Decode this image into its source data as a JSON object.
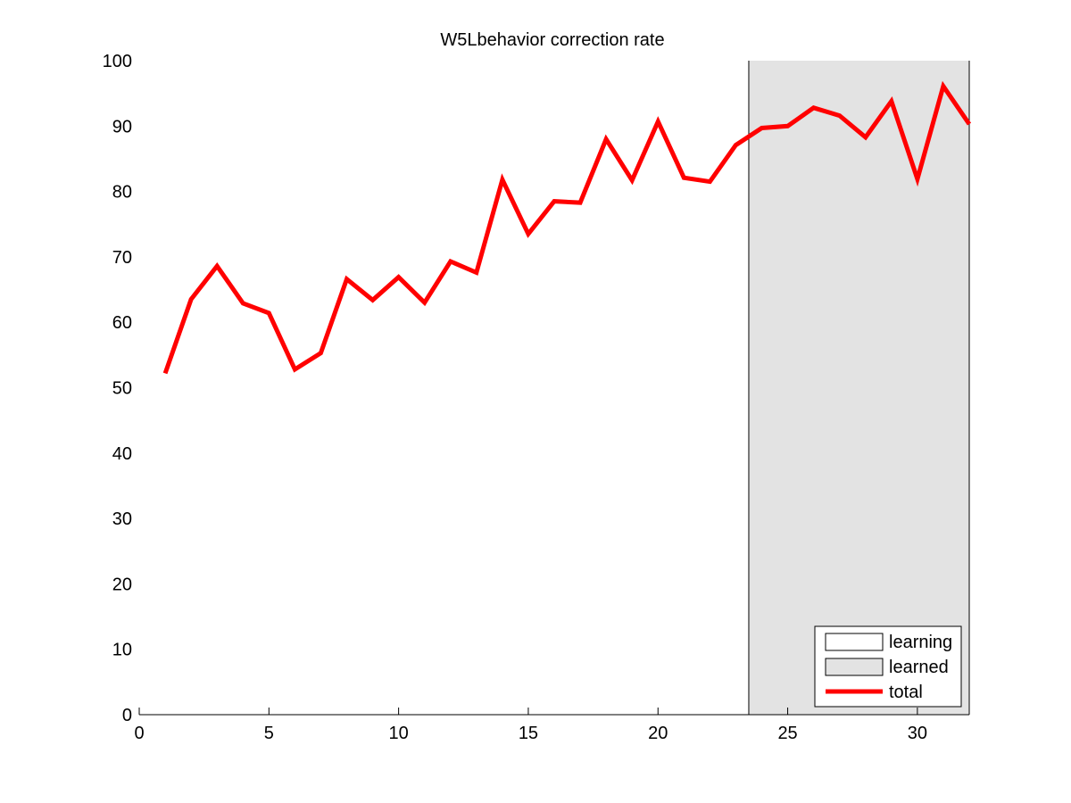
{
  "chart_data": {
    "type": "line",
    "title": "W5Lbehavior correction rate",
    "xlabel": "",
    "ylabel": "",
    "xlim": [
      0,
      32
    ],
    "ylim": [
      0,
      100
    ],
    "xticks": [
      0,
      5,
      10,
      15,
      20,
      25,
      30
    ],
    "yticks": [
      0,
      10,
      20,
      30,
      40,
      50,
      60,
      70,
      80,
      90,
      100
    ],
    "grid": false,
    "legend_position": "bottom-right",
    "regions": [
      {
        "name": "learning",
        "x_start": 0,
        "x_end": 23.5,
        "color": "#ffffff"
      },
      {
        "name": "learned",
        "x_start": 23.5,
        "x_end": 32,
        "color": "#e3e3e3"
      }
    ],
    "series": [
      {
        "name": "total",
        "color": "#ff0000",
        "x": [
          1,
          2,
          3,
          4,
          5,
          6,
          7,
          8,
          9,
          10,
          11,
          12,
          13,
          14,
          15,
          16,
          17,
          18,
          19,
          20,
          21,
          22,
          23,
          24,
          25,
          26,
          27,
          28,
          29,
          30,
          31,
          32
        ],
        "values": [
          52.2,
          63.5,
          68.6,
          62.9,
          61.4,
          52.8,
          55.3,
          66.6,
          63.4,
          66.9,
          63.0,
          69.3,
          67.6,
          81.8,
          73.5,
          78.5,
          78.3,
          88.0,
          81.7,
          90.7,
          82.1,
          81.5,
          87.1,
          89.7,
          90.0,
          92.8,
          91.6,
          88.3,
          93.8,
          81.9,
          96.1,
          90.3
        ]
      }
    ],
    "legend": [
      "learning",
      "learned",
      "total"
    ]
  }
}
